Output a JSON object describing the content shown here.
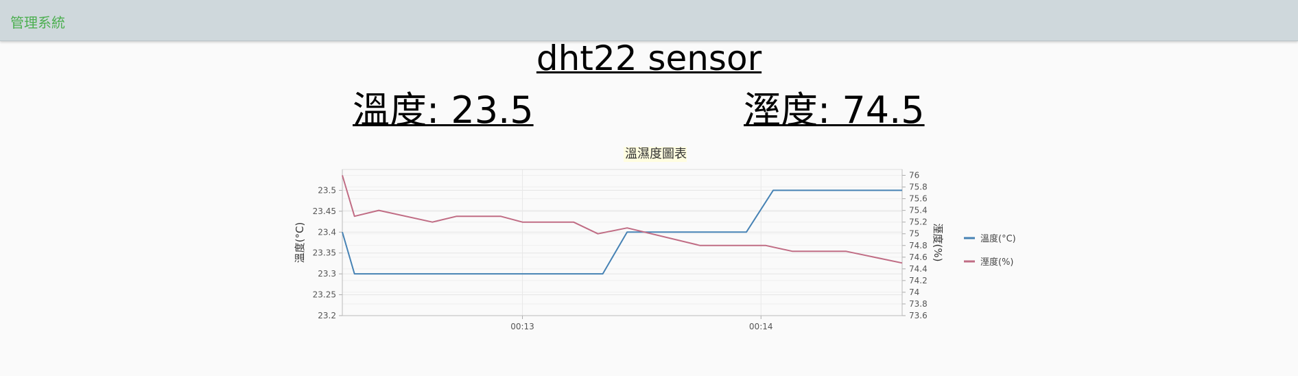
{
  "navbar": {
    "brand": "管理系統"
  },
  "page": {
    "title": "dht22 sensor",
    "temperature_reading": "溫度: 23.5",
    "humidity_reading": "溼度: 74.5"
  },
  "colors": {
    "navbar_bg": "#cfd8dc",
    "brand": "#4caf50",
    "temperature_line": "#4682b4",
    "humidity_line": "#c06c84"
  },
  "chart_data": {
    "type": "line",
    "title": "溫濕度圖表",
    "x": [
      0,
      1,
      2,
      3,
      4,
      5,
      6,
      7,
      8,
      9,
      10,
      11,
      12,
      13,
      14,
      15,
      16,
      17,
      18,
      19,
      20,
      21,
      22,
      23
    ],
    "xlim": [
      0,
      23
    ],
    "x_ticks": [
      {
        "x": 7.4,
        "label": "00:13"
      },
      {
        "x": 17.2,
        "label": "00:14"
      }
    ],
    "y_left": {
      "label": "溫度(°C)",
      "lim": [
        23.2,
        23.55
      ],
      "ticks": [
        "23.2",
        "23.25",
        "23.3",
        "23.35",
        "23.4",
        "23.45",
        "23.5"
      ]
    },
    "y_right": {
      "label": "溼度(%)",
      "lim": [
        73.6,
        76.1
      ],
      "ticks": [
        "73.6",
        "73.8",
        "74",
        "74.2",
        "74.4",
        "74.6",
        "74.8",
        "75",
        "75.2",
        "75.4",
        "75.6",
        "75.8",
        "76"
      ]
    },
    "series": [
      {
        "name": "溫度(°C)",
        "axis": "left",
        "x": [
          0,
          0.5,
          10.7,
          11.7,
          16.6,
          17.7,
          23
        ],
        "values": [
          23.4,
          23.3,
          23.3,
          23.4,
          23.4,
          23.5,
          23.5
        ]
      },
      {
        "name": "溼度(%)",
        "axis": "right",
        "x": [
          0,
          0.5,
          1.5,
          3.7,
          4.7,
          6.5,
          7.4,
          9.5,
          10.5,
          11.7,
          14.7,
          17.4,
          18.5,
          20.7,
          23
        ],
        "values": [
          76.0,
          75.3,
          75.4,
          75.2,
          75.3,
          75.3,
          75.2,
          75.2,
          75.0,
          75.1,
          74.8,
          74.8,
          74.7,
          74.7,
          74.5
        ]
      }
    ],
    "legend": [
      "溫度(°C)",
      "溼度(%)"
    ],
    "legend_position": "right",
    "grid": true
  }
}
